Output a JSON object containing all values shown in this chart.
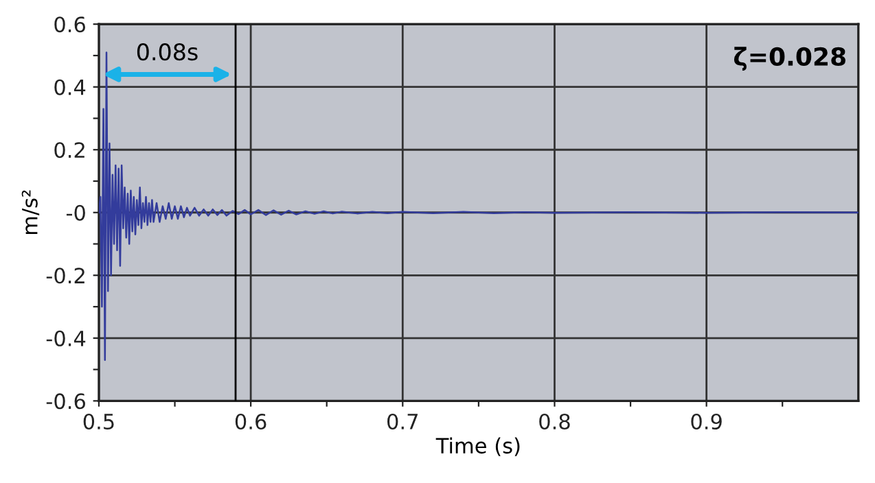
{
  "chart_data": {
    "type": "line",
    "xlabel": "Time (s)",
    "ylabel": "m/s²",
    "annotations": [
      "ζ=0.028",
      {
        "text": "0.08s",
        "x": 0.59,
        "y": 0.44
      }
    ],
    "ref_lines": [
      {
        "axis": "x",
        "value": 0.59,
        "color": "#000000"
      }
    ],
    "x": [
      0.5,
      0.501,
      0.502,
      0.503,
      0.504,
      0.505,
      0.506,
      0.507,
      0.508,
      0.509,
      0.51,
      0.511,
      0.512,
      0.513,
      0.514,
      0.515,
      0.516,
      0.517,
      0.518,
      0.519,
      0.52,
      0.521,
      0.522,
      0.523,
      0.524,
      0.525,
      0.526,
      0.527,
      0.528,
      0.529,
      0.53,
      0.531,
      0.532,
      0.533,
      0.534,
      0.535,
      0.536,
      0.538,
      0.54,
      0.542,
      0.544,
      0.546,
      0.548,
      0.55,
      0.552,
      0.554,
      0.556,
      0.558,
      0.56,
      0.563,
      0.566,
      0.569,
      0.572,
      0.575,
      0.578,
      0.581,
      0.584,
      0.588,
      0.592,
      0.596,
      0.6,
      0.605,
      0.61,
      0.615,
      0.62,
      0.625,
      0.63,
      0.636,
      0.642,
      0.648,
      0.654,
      0.66,
      0.67,
      0.68,
      0.69,
      0.7,
      0.72,
      0.74,
      0.76,
      0.78,
      0.8,
      0.85,
      0.9,
      0.95,
      1.0
    ],
    "series": [
      {
        "color": "#333c9c",
        "values": [
          0,
          0.05,
          -0.3,
          0.33,
          -0.47,
          0.51,
          -0.25,
          0.22,
          -0.2,
          0.12,
          -0.1,
          0.15,
          -0.12,
          0.14,
          -0.17,
          0.15,
          -0.05,
          0.08,
          -0.08,
          0.06,
          -0.1,
          0.07,
          -0.06,
          0.05,
          -0.07,
          0.04,
          -0.04,
          0.08,
          -0.05,
          0.03,
          -0.03,
          0.05,
          -0.04,
          0.03,
          -0.03,
          0.04,
          -0.03,
          0.03,
          -0.03,
          0.02,
          -0.02,
          0.03,
          -0.02,
          0.02,
          -0.02,
          0.02,
          -0.015,
          0.015,
          -0.01,
          0.015,
          -0.01,
          0.01,
          -0.01,
          0.01,
          -0.008,
          0.008,
          -0.01,
          0.005,
          -0.005,
          0.008,
          -0.006,
          0.008,
          -0.008,
          0.007,
          -0.007,
          0.006,
          -0.006,
          0.004,
          -0.004,
          0.004,
          -0.003,
          0.003,
          -0.003,
          0.002,
          -0.002,
          0.002,
          -0.002,
          0.002,
          -0.002,
          0.001,
          -0.001,
          0.001,
          -0.001,
          0.001,
          0
        ]
      }
    ],
    "xlim": [
      0.5,
      1.0
    ],
    "ylim": [
      -0.6,
      0.6
    ],
    "xticks": [
      0.5,
      {
        "value": 0.55,
        "label": null
      },
      0.6,
      {
        "value": 0.65,
        "label": null
      },
      0.7,
      {
        "value": 0.75,
        "label": null
      },
      0.8,
      {
        "value": 0.85,
        "label": null
      },
      0.9,
      {
        "value": 0.95,
        "label": null
      }
    ],
    "yticks": [
      -0.6,
      {
        "value": -0.5,
        "label": null
      },
      -0.4,
      {
        "value": -0.3,
        "label": null
      },
      -0.2,
      {
        "value": -0.1,
        "label": null
      },
      {
        "value": 0,
        "label": "-0"
      },
      {
        "value": 0.1,
        "label": null
      },
      0.2,
      {
        "value": 0.3,
        "label": null
      },
      0.4,
      {
        "value": 0.5,
        "label": null
      },
      0.6
    ],
    "grid": true,
    "line_style": "solid",
    "marker": "none"
  }
}
